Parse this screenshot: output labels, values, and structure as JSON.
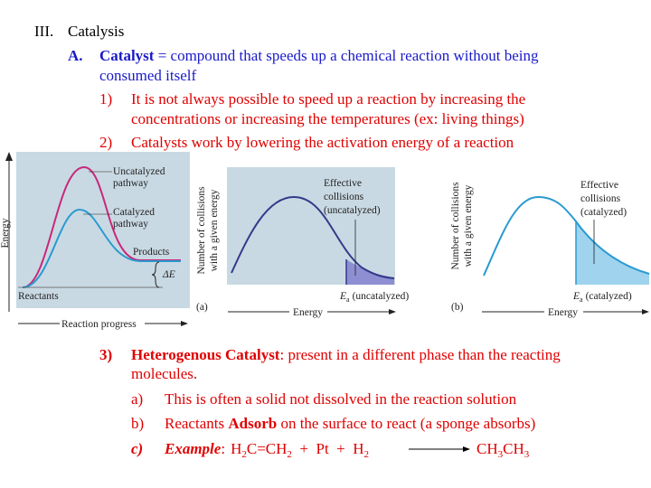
{
  "heading": {
    "numeral": "III.",
    "title": "Catalysis"
  },
  "point_a": {
    "marker": "A.",
    "term": "Catalyst",
    "lines": [
      "= compound that speeds up a chemical reaction without being",
      "consumed itself"
    ]
  },
  "items": [
    {
      "marker": "1)",
      "lines": [
        "It is not always possible to speed up a reaction by increasing the",
        "concentrations or increasing the temperatures (ex: living things)"
      ]
    },
    {
      "marker": "2)",
      "lines": [
        "Catalysts work by lowering the activation energy of a reaction"
      ]
    }
  ],
  "figure_pathway": {
    "y_label": "Energy",
    "x_label": "Reaction progress",
    "uncatalyzed": [
      "Uncatalyzed",
      "pathway"
    ],
    "catalyzed": [
      "Catalyzed",
      "pathway"
    ],
    "products": "Products",
    "reactants": "Reactants",
    "delta": "ΔE"
  },
  "figure_a": {
    "y_label": [
      "Number of collisions",
      "with a given energy"
    ],
    "note": [
      "Effective",
      "collisions",
      "(uncatalyzed)"
    ],
    "ea": "E",
    "ea_sub": "a",
    "ea_note": "(uncatalyzed)",
    "panel": "(a)",
    "x_label": "Energy"
  },
  "figure_b": {
    "y_label": [
      "Number of collisions",
      "with a given energy"
    ],
    "note": [
      "Effective",
      "collisions",
      "(catalyzed)"
    ],
    "ea": "E",
    "ea_sub": "a",
    "ea_note": "(catalyzed)",
    "panel": "(b)",
    "x_label": "Energy"
  },
  "item3": {
    "marker": "3)",
    "term": "Heterogenous Catalyst",
    "lines": [
      ": present in a different phase than the reacting",
      "molecules."
    ],
    "subitems": [
      {
        "marker": "a)",
        "text": "This is often a solid not dissolved in the reaction solution"
      },
      {
        "marker": "b)",
        "before": "Reactants",
        "bold": "Adsorb",
        "after": "on the surface to react  (a sponge absorbs)"
      },
      {
        "marker": "c)",
        "label": "Example",
        "colon": ":",
        "reactants": [
          "H",
          "2",
          "C=CH",
          "2",
          "  +  Pt  +  H",
          "2"
        ],
        "products": [
          "CH",
          "3",
          "CH",
          "3"
        ]
      }
    ]
  }
}
